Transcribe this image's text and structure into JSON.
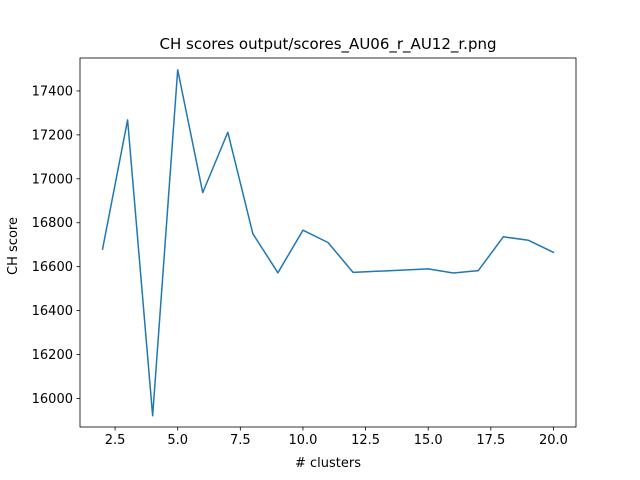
{
  "chart_data": {
    "type": "line",
    "title": "CH scores output/scores_AU06_r_AU12_r.png",
    "xlabel": "# clusters",
    "ylabel": "CH score",
    "xlim": [
      1.1,
      20.9
    ],
    "ylim": [
      15870,
      17550
    ],
    "x_ticks": [
      2.5,
      5.0,
      7.5,
      10.0,
      12.5,
      15.0,
      17.5,
      20.0
    ],
    "x_tick_labels": [
      "2.5",
      "5.0",
      "7.5",
      "10.0",
      "12.5",
      "15.0",
      "17.5",
      "20.0"
    ],
    "y_ticks": [
      16000,
      16200,
      16400,
      16600,
      16800,
      17000,
      17200,
      17400
    ],
    "y_tick_labels": [
      "16000",
      "16200",
      "16400",
      "16600",
      "16800",
      "17000",
      "17200",
      "17400"
    ],
    "grid": false,
    "series": [
      {
        "name": "CH score",
        "color": "#1f77b4",
        "x": [
          2,
          3,
          4,
          5,
          6,
          7,
          8,
          9,
          10,
          11,
          12,
          15,
          16,
          17,
          18,
          19,
          20
        ],
        "y": [
          16680,
          17268,
          15921,
          17496,
          16937,
          17212,
          16750,
          16572,
          16766,
          16710,
          16574,
          16590,
          16571,
          16582,
          16736,
          16720,
          16665
        ]
      }
    ]
  }
}
